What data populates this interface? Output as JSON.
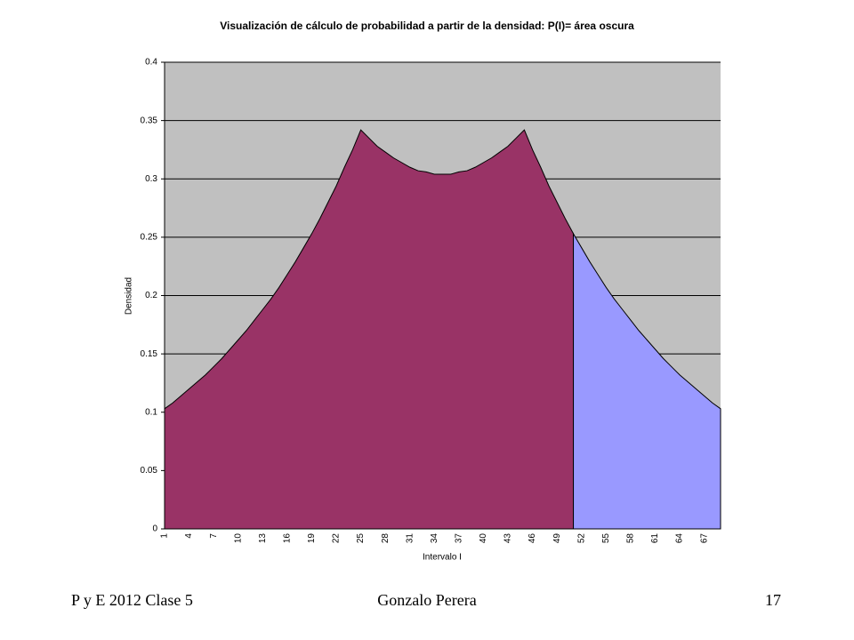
{
  "chart_data": {
    "type": "area",
    "title": "Visualización de cálculo de probabilidad a partir de la densidad: P(I)= área oscura",
    "x_label": "Intervalo I",
    "y_label": "Densidad",
    "categories": [
      1,
      null,
      null,
      4,
      null,
      null,
      7,
      null,
      null,
      10,
      null,
      null,
      13,
      null,
      null,
      16,
      null,
      null,
      19,
      null,
      null,
      22,
      null,
      null,
      25,
      null,
      null,
      28,
      null,
      null,
      31,
      null,
      null,
      34,
      null,
      null,
      37,
      null,
      null,
      40,
      null,
      null,
      43,
      null,
      null,
      46,
      null,
      null,
      49,
      null,
      null,
      52,
      null,
      null,
      55,
      null,
      null,
      58,
      null,
      null,
      61,
      null,
      null,
      64,
      null,
      null,
      67,
      null,
      null
    ],
    "series": [
      {
        "color": "#993366",
        "values": [
          0.103,
          0.108,
          0.114,
          0.12,
          0.126,
          0.132,
          0.139,
          0.146,
          0.154,
          0.162,
          0.17,
          0.179,
          0.188,
          0.197,
          0.207,
          0.218,
          0.229,
          0.241,
          0.253,
          0.266,
          0.28,
          0.294,
          0.31,
          0.325,
          0.342,
          0.335,
          0.328,
          0.323,
          0.318,
          0.314,
          0.31,
          0.307,
          0.306,
          0.304,
          0.304,
          0.304,
          0.306,
          0.307,
          0.31,
          0.314,
          0.318,
          0.323,
          0.328,
          0.335,
          0.342,
          0.325,
          0.31,
          0.294,
          0.28,
          0.266,
          0.253,
          null,
          null,
          null,
          null,
          null,
          null,
          null,
          null,
          null,
          null,
          null,
          null,
          null,
          null,
          null,
          null,
          null,
          null
        ]
      },
      {
        "color": "#9999ff",
        "values": [
          null,
          null,
          null,
          null,
          null,
          null,
          null,
          null,
          null,
          null,
          null,
          null,
          null,
          null,
          null,
          null,
          null,
          null,
          null,
          null,
          null,
          null,
          null,
          null,
          null,
          null,
          null,
          null,
          null,
          null,
          null,
          null,
          null,
          null,
          null,
          null,
          null,
          null,
          null,
          null,
          null,
          null,
          null,
          null,
          null,
          null,
          null,
          null,
          null,
          null,
          0.253,
          0.241,
          0.229,
          0.218,
          0.207,
          0.197,
          0.188,
          0.179,
          0.17,
          0.162,
          0.154,
          0.146,
          0.139,
          0.132,
          0.126,
          0.12,
          0.114,
          0.108,
          0.103
        ]
      }
    ],
    "ylim": [
      0,
      0.4
    ],
    "yticks": [
      0,
      0.05,
      0.1,
      0.15,
      0.2,
      0.25,
      0.3,
      0.35,
      0.4
    ],
    "grid": true,
    "plot_background": "#c0c0c0"
  },
  "footer": {
    "left": "P y E 2012 Clase 5",
    "center": "Gonzalo Perera",
    "right": "17"
  }
}
